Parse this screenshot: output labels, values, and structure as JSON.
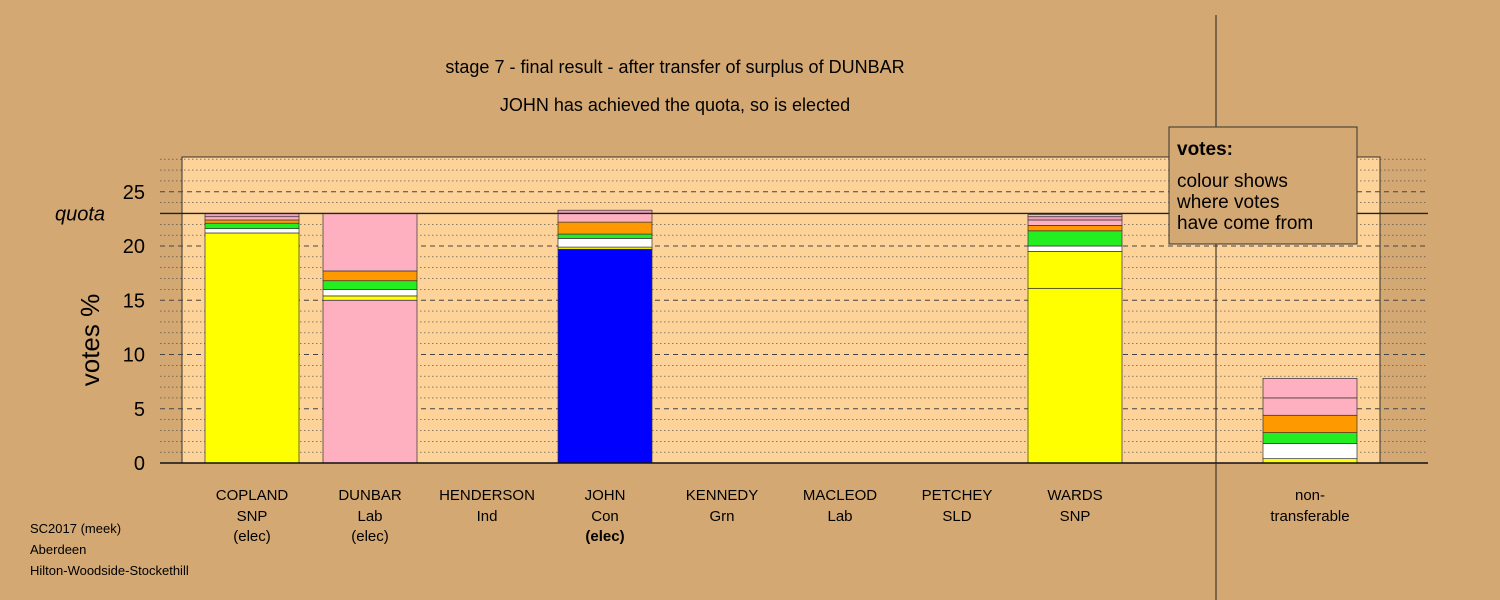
{
  "chart_data": {
    "type": "bar",
    "stacked": true,
    "title": "stage 7 - final result - after transfer of surplus of DUNBAR",
    "subtitle": "JOHN has achieved the quota, so is elected",
    "ylabel": "votes %",
    "ylim": [
      0,
      28
    ],
    "yticks": [
      0,
      5,
      10,
      15,
      20,
      25
    ],
    "quota": 23.0,
    "quota_label": "quota",
    "grid": true,
    "legend": {
      "title": "votes:",
      "lines": [
        "colour shows",
        "where votes",
        "have come from"
      ],
      "placement": "top-right"
    },
    "categories": [
      {
        "name": "COPLAND",
        "party": "SNP",
        "status": "(elec)",
        "status_bold": false
      },
      {
        "name": "DUNBAR",
        "party": "Lab",
        "status": "(elec)",
        "status_bold": false
      },
      {
        "name": "HENDERSON",
        "party": "Ind",
        "status": "",
        "status_bold": false
      },
      {
        "name": "JOHN",
        "party": "Con",
        "status": "(elec)",
        "status_bold": true
      },
      {
        "name": "KENNEDY",
        "party": "Grn",
        "status": "",
        "status_bold": false
      },
      {
        "name": "MACLEOD",
        "party": "Lab",
        "status": "",
        "status_bold": false
      },
      {
        "name": "PETCHEY",
        "party": "SLD",
        "status": "",
        "status_bold": false
      },
      {
        "name": "WARDS",
        "party": "SNP",
        "status": "",
        "status_bold": false
      }
    ],
    "nontransferable_label": [
      "non-",
      "transferable"
    ],
    "stacks": [
      [
        {
          "value": 21.2,
          "color": "#ffff00"
        },
        {
          "value": 0.4,
          "color": "#ffffff"
        },
        {
          "value": 0.5,
          "color": "#22ee22"
        },
        {
          "value": 0.3,
          "color": "#ff9900"
        },
        {
          "value": 0.3,
          "color": "#ffb0c0"
        },
        {
          "value": 0.3,
          "color": "#f2a0b8"
        }
      ],
      [
        {
          "value": 15.0,
          "color": "#ffb0c0"
        },
        {
          "value": 0.4,
          "color": "#ffff00"
        },
        {
          "value": 0.6,
          "color": "#ffffff"
        },
        {
          "value": 0.8,
          "color": "#22ee22"
        },
        {
          "value": 0.9,
          "color": "#ff9900"
        },
        {
          "value": 5.3,
          "color": "#ffb0c0"
        }
      ],
      [],
      [
        {
          "value": 19.7,
          "color": "#0000ff"
        },
        {
          "value": 0.2,
          "color": "#ffff00"
        },
        {
          "value": 0.8,
          "color": "#ffffff"
        },
        {
          "value": 0.4,
          "color": "#22ee22"
        },
        {
          "value": 1.1,
          "color": "#ff9900"
        },
        {
          "value": 0.8,
          "color": "#ffb0c0"
        },
        {
          "value": 0.3,
          "color": "#f2a0b8"
        }
      ],
      [],
      [],
      [],
      [
        {
          "value": 16.1,
          "color": "#ffff00"
        },
        {
          "value": 3.4,
          "color": "#ffff00"
        },
        {
          "value": 0.5,
          "color": "#ffffff"
        },
        {
          "value": 1.4,
          "color": "#22ee22"
        },
        {
          "value": 0.5,
          "color": "#ff9900"
        },
        {
          "value": 0.5,
          "color": "#ffb0c0"
        },
        {
          "value": 0.3,
          "color": "#f2a0b8"
        },
        {
          "value": 0.2,
          "color": "#ffb0c0"
        }
      ]
    ],
    "nontransferable_stack": [
      {
        "value": 0.4,
        "color": "#ffff00"
      },
      {
        "value": 1.4,
        "color": "#ffffff"
      },
      {
        "value": 1.0,
        "color": "#22ee22"
      },
      {
        "value": 1.6,
        "color": "#ff9900"
      },
      {
        "value": 1.6,
        "color": "#ffb0c0"
      },
      {
        "value": 1.8,
        "color": "#ffb0c0"
      }
    ],
    "colors": {
      "background": "#d4a872",
      "plot_background": "#fdd39a",
      "grid": "#444444"
    }
  },
  "footer": {
    "lines": [
      "SC2017 (meek)",
      "Aberdeen",
      "Hilton-Woodside-Stockethill"
    ]
  }
}
